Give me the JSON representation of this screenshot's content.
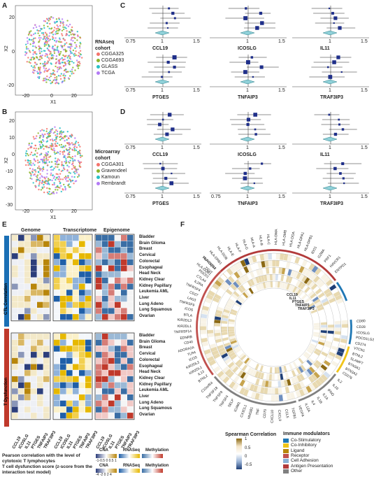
{
  "panel_letters": [
    "A",
    "B",
    "C",
    "D",
    "E",
    "F"
  ],
  "panelA": {
    "legend_title": "RNAseq cohort",
    "legend_items": [
      {
        "label": "CGGA325",
        "color": "#f4736b"
      },
      {
        "label": "CGGA693",
        "color": "#8cb528"
      },
      {
        "label": "GLASS",
        "color": "#27bfc4"
      },
      {
        "label": "TCGA",
        "color": "#b37af5"
      }
    ],
    "xlabel": "X1",
    "ylabel": "X2",
    "xticks": [
      "-20",
      "0",
      "20"
    ],
    "yticks": [
      "20",
      "0",
      "-20"
    ]
  },
  "panelB": {
    "legend_title": "Microarray cohort",
    "legend_items": [
      {
        "label": "CGGA301",
        "color": "#f4736b"
      },
      {
        "label": "Gravendeel",
        "color": "#8cb528"
      },
      {
        "label": "Kamoun",
        "color": "#27bfc4"
      },
      {
        "label": "Rembrandt",
        "color": "#b37af5"
      }
    ],
    "xlabel": "X1",
    "ylabel": "X2",
    "xticks": [
      "-20",
      "0",
      "20"
    ],
    "yticks": [
      "20",
      "10",
      "0",
      "-10",
      "-20",
      "-30"
    ]
  },
  "panelC": {
    "plots": [
      {
        "gene": "CCL19",
        "ticks": [
          "0.75",
          "1",
          "1.5"
        ]
      },
      {
        "gene": "ICOSLG",
        "ticks": [
          "1",
          "1.5"
        ]
      },
      {
        "gene": "IL11",
        "ticks": [
          "1",
          "1.5"
        ]
      },
      {
        "gene": "PTGES",
        "ticks": [
          "0.75",
          "1",
          "1.5"
        ]
      },
      {
        "gene": "TNFAIP3",
        "ticks": [
          "1",
          "1.5"
        ]
      },
      {
        "gene": "TRAF3IP3",
        "ticks": [
          "1",
          "1.5"
        ]
      }
    ]
  },
  "panelD": {
    "plots": [
      {
        "gene": "CCL19",
        "ticks": [
          "0.75",
          "1",
          "1.5"
        ]
      },
      {
        "gene": "ICOSLG",
        "ticks": [
          "1",
          "1.5"
        ]
      },
      {
        "gene": "IL11",
        "ticks": [
          "1",
          "1.5"
        ]
      },
      {
        "gene": "PTGES",
        "ticks": [
          "0.75",
          "1",
          "1.5"
        ]
      },
      {
        "gene": "TNFAIP3",
        "ticks": [
          "0.75",
          "1",
          "1.5"
        ]
      },
      {
        "gene": "TRAF3IP3",
        "ticks": [
          "1",
          "1.5"
        ]
      }
    ]
  },
  "panelE": {
    "headers": [
      "Genome",
      "Transcriptome",
      "Epigenome"
    ],
    "side_labels": [
      "CTL Correlation",
      "T Dysfunction"
    ],
    "row_labels": [
      "Bladder",
      "Brain Glioma",
      "Breast",
      "Cervical",
      "Colorectal",
      "Esophageal",
      "Head Neck",
      "Kidney Clear",
      "Kidney Papillary",
      "Leukemia AML",
      "Liver",
      "Lung Adeno",
      "Lung Squamous",
      "Ovarian"
    ],
    "col_labels": [
      "CCL19",
      "ICOSLG",
      "IL11",
      "PTGES",
      "TNFAIP3",
      "TRAF3IP3"
    ],
    "legend1_text": "Pearson correlation with the level of cytotoxic T lymphocytes",
    "legend2_text": "T cell dysfunction score (z-score from the interaction test model)",
    "legend_headers": [
      "CNA",
      "RNASeq",
      "Methylation"
    ],
    "legend1_ticks": "-1-0.5 0 0.5 1",
    "legend2_ticks": "-4 -2 0 2 4"
  },
  "panelF": {
    "top_genes": [
      "HLA-DQB1",
      "HLA-DQB2",
      "HLA-DRB1",
      "HLA-DOB",
      "HLA-E",
      "HLA-F",
      "HLA-G",
      "HLA-A",
      "HLA-B",
      "HLA-C",
      "HLA-DMA",
      "HLA-DMB",
      "HLA-DOA",
      "HLA-DPA1",
      "HLA-DPB1",
      "IDO1",
      "GZMA",
      "PRF1",
      "HAVCR1",
      "ENTPD1"
    ],
    "left_genes": [
      "BTNL2",
      "IL13",
      "KIR2DL1",
      "KIR2DL3",
      "ICOS",
      "TLR4",
      "ADORA2A",
      "CD40",
      "EDNRB",
      "TNFRSF14",
      "KIR2DL1",
      "KIR2DL3",
      "BTLA",
      "ICOS",
      "TNFRSF9",
      "LAG3",
      "CD27",
      "TNFRSF4",
      "IL2RA",
      "CTLA4",
      "PDCD1",
      "TIGIT",
      "TNFRSF18"
    ],
    "bottom_genes": [
      "IL2",
      "IL10",
      "IFNG",
      "IL1A",
      "IL1B",
      "IL4",
      "IL12A",
      "VEGFA",
      "TGFB1",
      "CCL5",
      "CXCL9",
      "CXCL10",
      "CD70",
      "TNF",
      "HMGB1",
      "CX3CL1",
      "ICAM1",
      "SELP",
      "TNFSF4",
      "TNFSF9",
      "TNFSF18",
      "C10orf54"
    ],
    "right_genes": [
      "CD80",
      "CD28",
      "ICOSLG",
      "PDCD1LG2",
      "CD274",
      "VTCN1",
      "BTNL2",
      "SLAMF7",
      "BTN3A1",
      "BTN3A2",
      "CD276"
    ],
    "inner_labels": [
      "CCL19",
      "IL11",
      "PTGES",
      "TNFAIP3",
      "TRAF3IP3"
    ],
    "spearman_title": "Spearman Correlation",
    "spearman_ticks": [
      "1",
      "0.5",
      "0",
      "-0.5"
    ],
    "modulators_title": "Immune modulators",
    "modulators": [
      {
        "label": "Co-Stimulatory",
        "color": "#1f77b4"
      },
      {
        "label": "Co-Inhibitory",
        "color": "#f0c419"
      },
      {
        "label": "Ligand",
        "color": "#b8860b"
      },
      {
        "label": "Receptor",
        "color": "#c0504d"
      },
      {
        "label": "Cell Adhesion",
        "color": "#8ab1d6"
      },
      {
        "label": "Antigen Presentation",
        "color": "#b23a3a"
      },
      {
        "label": "Other",
        "color": "#808080"
      }
    ]
  }
}
